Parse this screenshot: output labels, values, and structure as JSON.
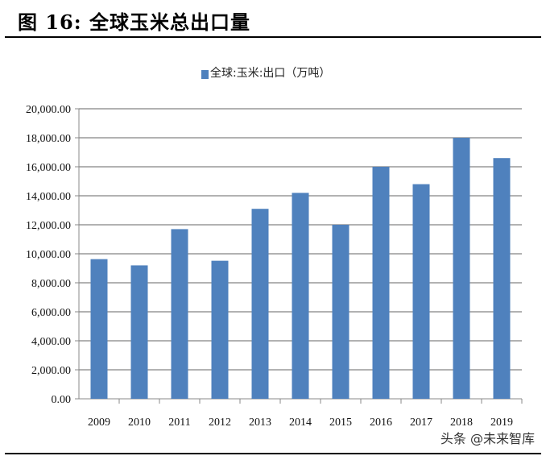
{
  "title": "图  16:  全球玉米总出口量",
  "watermark": "头条 @未来智库",
  "chart_data": {
    "type": "bar",
    "title": "",
    "categories": [
      "2009",
      "2010",
      "2011",
      "2012",
      "2013",
      "2014",
      "2015",
      "2016",
      "2017",
      "2018",
      "2019"
    ],
    "series": [
      {
        "name": "全球:玉米:出口（万吨）",
        "values": [
          9630,
          9200,
          11700,
          9520,
          13100,
          14200,
          12000,
          16000,
          14800,
          18000,
          16600
        ],
        "color": "#4f81bd"
      }
    ],
    "ylim": [
      0,
      20000
    ],
    "yticks": [
      "0.00",
      "2,000.00",
      "4,000.00",
      "6,000.00",
      "8,000.00",
      "10,000.00",
      "12,000.00",
      "14,000.00",
      "16,000.00",
      "18,000.00",
      "20,000.00"
    ],
    "grid": true,
    "legend": "top"
  }
}
